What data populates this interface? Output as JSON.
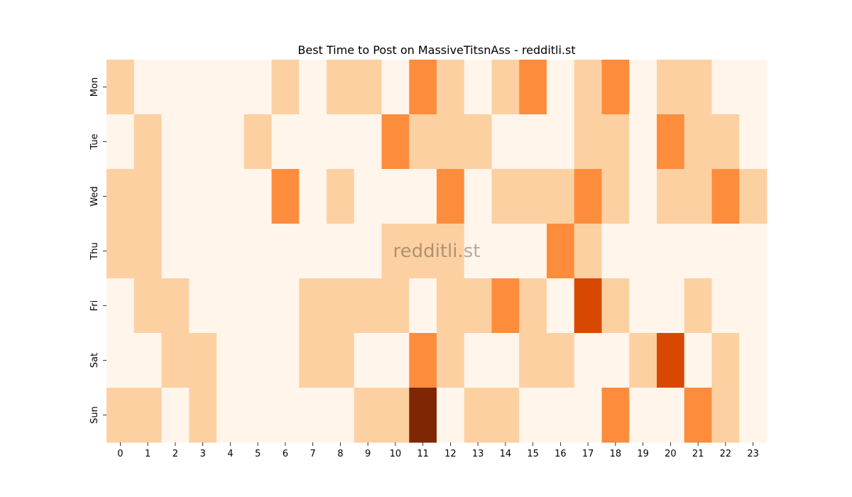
{
  "chart_data": {
    "type": "heatmap",
    "title": "Best Time to Post on MassiveTitsnAss - redditli.st",
    "watermark": "redditli.st",
    "xlabel": "",
    "ylabel": "",
    "x_categories": [
      "0",
      "1",
      "2",
      "3",
      "4",
      "5",
      "6",
      "7",
      "8",
      "9",
      "10",
      "11",
      "12",
      "13",
      "14",
      "15",
      "16",
      "17",
      "18",
      "19",
      "20",
      "21",
      "22",
      "23"
    ],
    "y_categories": [
      "Mon",
      "Tue",
      "Wed",
      "Thu",
      "Fri",
      "Sat",
      "Sun"
    ],
    "value_range": [
      0,
      4
    ],
    "colorscale": "Oranges",
    "legend": "none",
    "grid": false,
    "values": [
      [
        1,
        0,
        0,
        0,
        0,
        0,
        1,
        0,
        1,
        1,
        0,
        2,
        1,
        0,
        1,
        2,
        0,
        1,
        2,
        0,
        1,
        1,
        0,
        0
      ],
      [
        0,
        1,
        0,
        0,
        0,
        1,
        0,
        0,
        0,
        0,
        2,
        1,
        1,
        1,
        0,
        0,
        0,
        1,
        1,
        0,
        2,
        1,
        1,
        0
      ],
      [
        1,
        1,
        0,
        0,
        0,
        0,
        2,
        0,
        1,
        0,
        0,
        0,
        2,
        0,
        1,
        1,
        1,
        2,
        1,
        0,
        1,
        1,
        2,
        1
      ],
      [
        1,
        1,
        0,
        0,
        0,
        0,
        0,
        0,
        0,
        0,
        1,
        1,
        1,
        0,
        0,
        0,
        2,
        1,
        0,
        0,
        0,
        0,
        0,
        0
      ],
      [
        0,
        1,
        1,
        0,
        0,
        0,
        0,
        1,
        1,
        1,
        1,
        0,
        1,
        1,
        2,
        1,
        0,
        3,
        1,
        0,
        0,
        1,
        0,
        0
      ],
      [
        0,
        0,
        1,
        1,
        0,
        0,
        0,
        1,
        1,
        0,
        0,
        2,
        1,
        0,
        0,
        1,
        1,
        0,
        0,
        1,
        3,
        0,
        1,
        0
      ],
      [
        1,
        1,
        0,
        1,
        0,
        0,
        0,
        0,
        0,
        1,
        1,
        4,
        0,
        1,
        1,
        0,
        0,
        0,
        2,
        0,
        0,
        2,
        1,
        0
      ]
    ],
    "level_colors": [
      "#fff5eb",
      "#fdd0a2",
      "#fd8d3c",
      "#d94801",
      "#7f2704"
    ]
  }
}
